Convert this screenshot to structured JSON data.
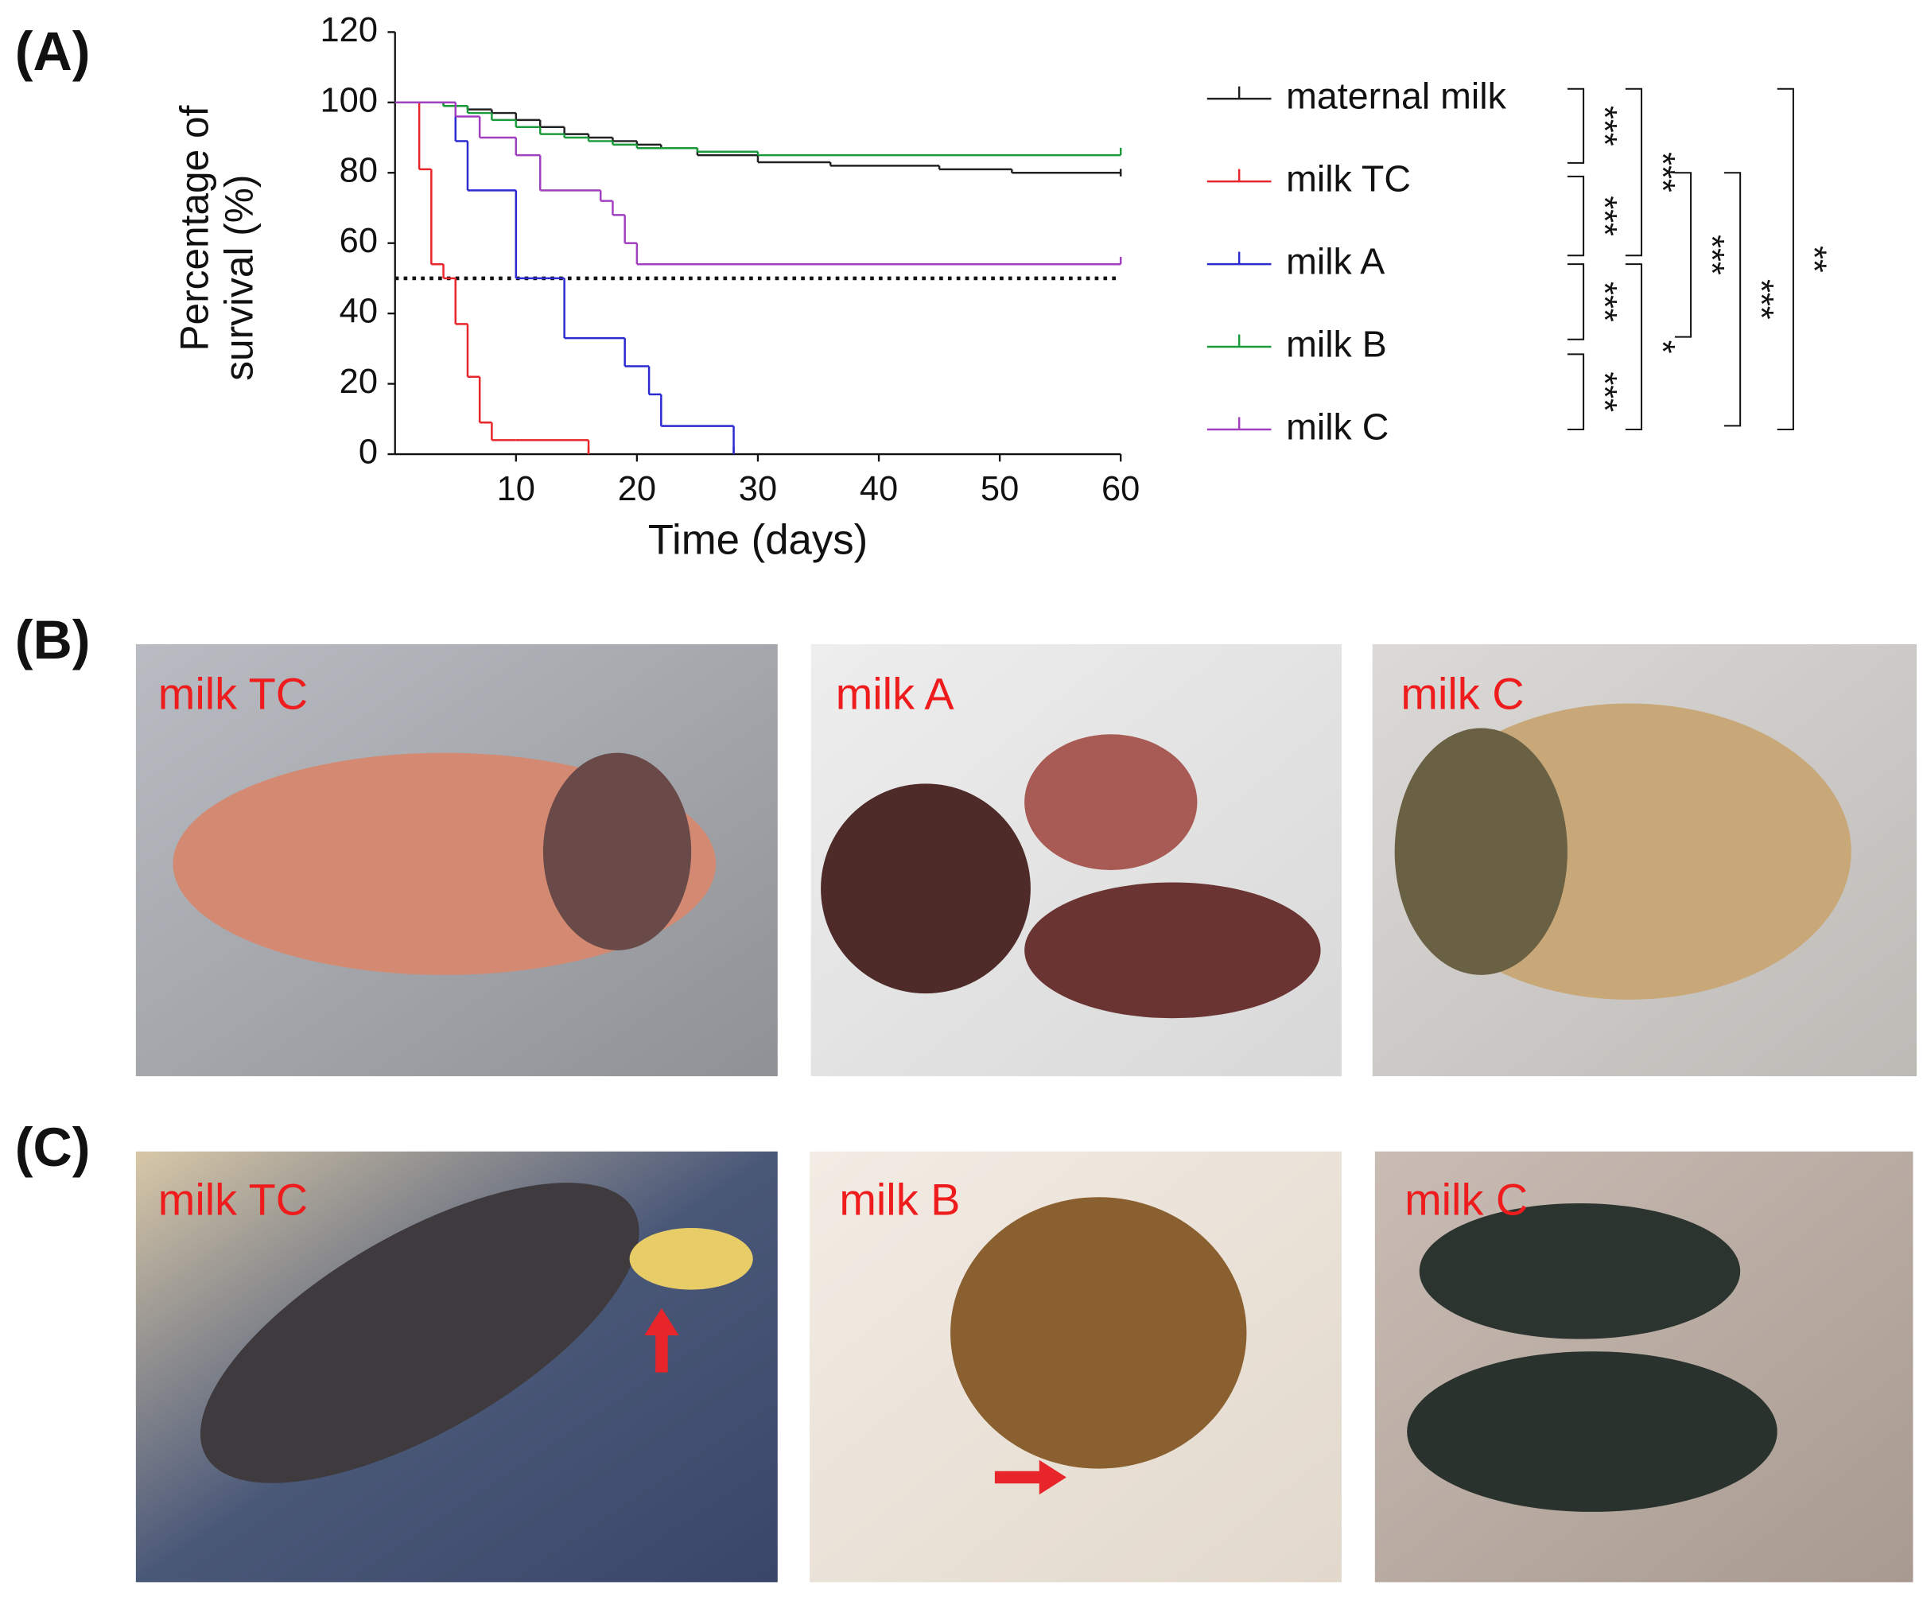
{
  "chart_data": {
    "type": "line",
    "panel_labels": [
      "(A)",
      "(B)",
      "(C)"
    ],
    "ylabel": [
      "Percentage of",
      "survival (%)"
    ],
    "xlabel": "Time (days)",
    "xlim": [
      0,
      60
    ],
    "ylim": [
      0,
      120
    ],
    "xticks": [
      10,
      20,
      30,
      40,
      50,
      60
    ],
    "yticks": [
      0,
      20,
      40,
      60,
      80,
      100,
      120
    ],
    "reference_line": 50,
    "series": [
      {
        "name": "maternal milk",
        "color": "#222222",
        "x": [
          0,
          2,
          4,
          6,
          8,
          10,
          12,
          14,
          16,
          18,
          20,
          22,
          25,
          30,
          36,
          45,
          51,
          60
        ],
        "values": [
          100,
          100,
          99,
          98,
          97,
          95,
          93,
          91,
          90,
          89,
          88,
          87,
          85,
          83,
          82,
          81,
          80,
          79
        ]
      },
      {
        "name": "milk TC",
        "color": "#e8252a",
        "x": [
          0,
          2,
          3,
          4,
          5,
          6,
          7,
          8,
          10,
          16
        ],
        "values": [
          100,
          81,
          54,
          50,
          37,
          22,
          9,
          4,
          4,
          0
        ]
      },
      {
        "name": "milk A",
        "color": "#2b2bd0",
        "x": [
          0,
          5,
          6,
          10,
          14,
          19,
          21,
          22,
          28
        ],
        "values": [
          100,
          89,
          75,
          50,
          33,
          25,
          17,
          8,
          0
        ]
      },
      {
        "name": "milk B",
        "color": "#1a9a3a",
        "x": [
          0,
          2,
          4,
          6,
          8,
          10,
          12,
          14,
          16,
          18,
          20,
          25,
          30,
          60
        ],
        "values": [
          100,
          100,
          99,
          97,
          95,
          93,
          91,
          90,
          89,
          88,
          87,
          86,
          85,
          85
        ]
      },
      {
        "name": "milk C",
        "color": "#a040c0",
        "x": [
          0,
          5,
          7,
          10,
          12,
          17,
          18,
          19,
          20,
          60
        ],
        "values": [
          100,
          96,
          90,
          85,
          75,
          72,
          68,
          60,
          54,
          54
        ]
      }
    ],
    "significance": [
      "***",
      "***",
      "***",
      "***",
      "***",
      "*",
      "***",
      "***",
      "**"
    ],
    "photo_labels_b": [
      "milk TC",
      "milk A",
      "milk C"
    ],
    "photo_labels_c": [
      "milk TC",
      "milk B",
      "milk C"
    ]
  }
}
